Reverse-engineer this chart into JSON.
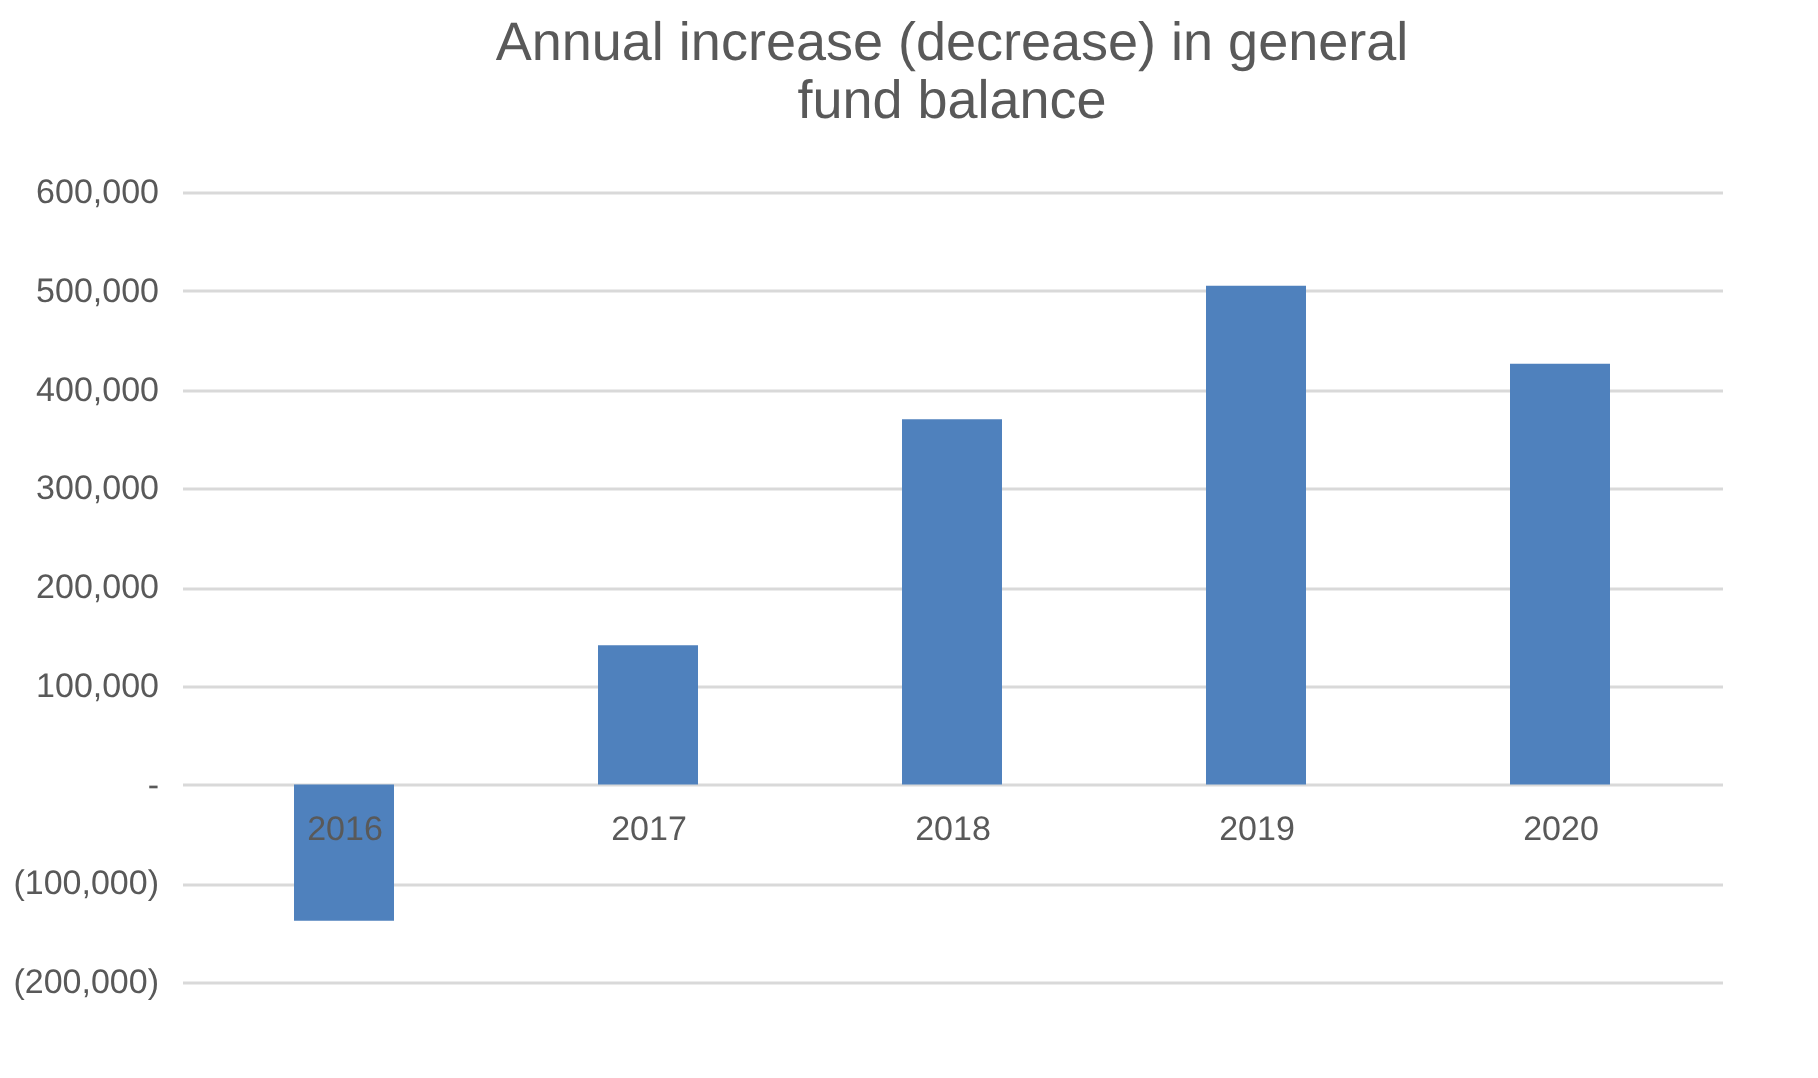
{
  "chart_data": {
    "type": "bar",
    "title": "Annual increase (decrease) in general fund balance",
    "categories": [
      "2016",
      "2017",
      "2018",
      "2019",
      "2020"
    ],
    "values": [
      -138000,
      141000,
      370000,
      505000,
      426000
    ],
    "color": "#4f81bd",
    "ylim": [
      -200000,
      600000
    ],
    "yticks": [
      {
        "value": -200000,
        "label": "(200,000)"
      },
      {
        "value": -100000,
        "label": "(100,000)"
      },
      {
        "value": 0,
        "label": "-"
      },
      {
        "value": 100000,
        "label": "100,000"
      },
      {
        "value": 200000,
        "label": "200,000"
      },
      {
        "value": 300000,
        "label": "300,000"
      },
      {
        "value": 400000,
        "label": "400,000"
      },
      {
        "value": 500000,
        "label": "500,000"
      },
      {
        "value": 600000,
        "label": "600,000"
      }
    ],
    "grid": "y"
  }
}
